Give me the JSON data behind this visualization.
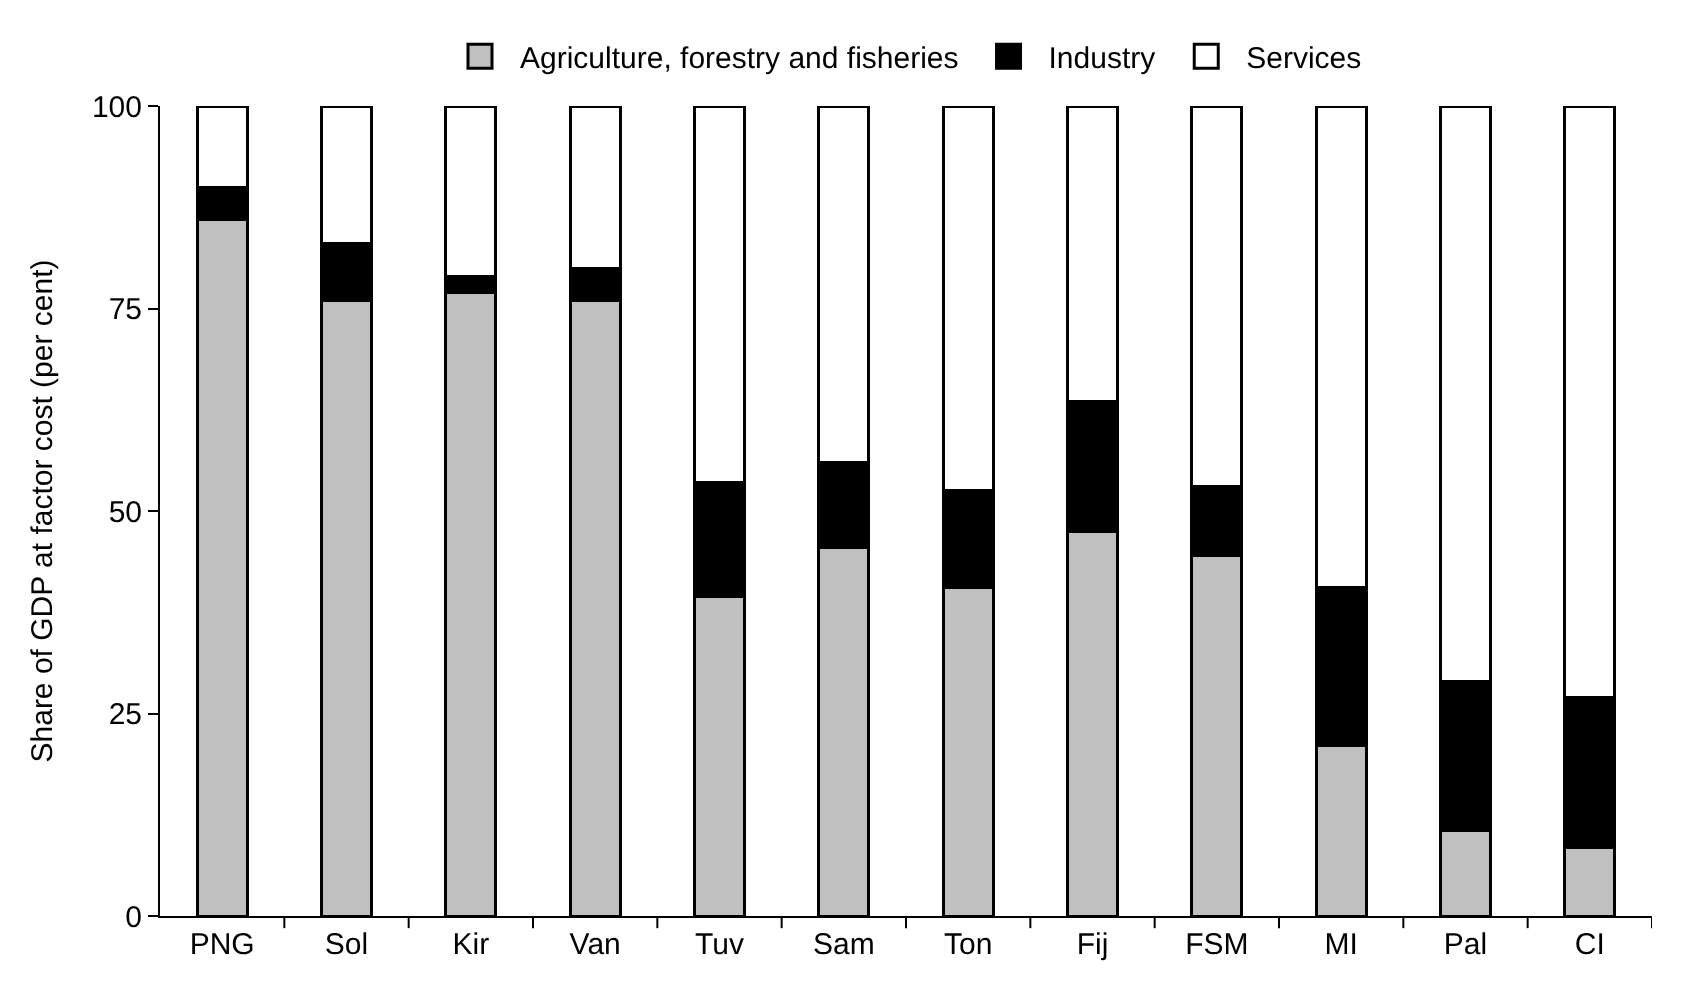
{
  "chart_data": {
    "type": "bar",
    "stacked": true,
    "ylabel": "Share of GDP at factor cost (per cent)",
    "categories": [
      "PNG",
      "Sol",
      "Kir",
      "Van",
      "Tuv",
      "Sam",
      "Ton",
      "Fij",
      "FSM",
      "MI",
      "Pal",
      "CI"
    ],
    "series": [
      {
        "name": "Agriculture, forestry and fisheries",
        "color": "#c0c0c0",
        "values": [
          86,
          76,
          77,
          76,
          39.5,
          45.5,
          40.5,
          47.5,
          44.5,
          21,
          10.5,
          8.5
        ]
      },
      {
        "name": "Industry",
        "color": "#000000",
        "values": [
          4,
          7,
          2,
          4,
          14,
          10.5,
          12,
          16,
          8.5,
          19.5,
          18.5,
          18.5
        ]
      },
      {
        "name": "Services",
        "color": "#ffffff",
        "values": [
          10,
          17,
          21,
          20,
          46.5,
          44,
          47.5,
          36.5,
          47,
          59.5,
          71,
          73
        ]
      }
    ],
    "ylim": [
      0,
      100
    ],
    "yticks": [
      0,
      25,
      50,
      75,
      100
    ],
    "legend": "top"
  }
}
